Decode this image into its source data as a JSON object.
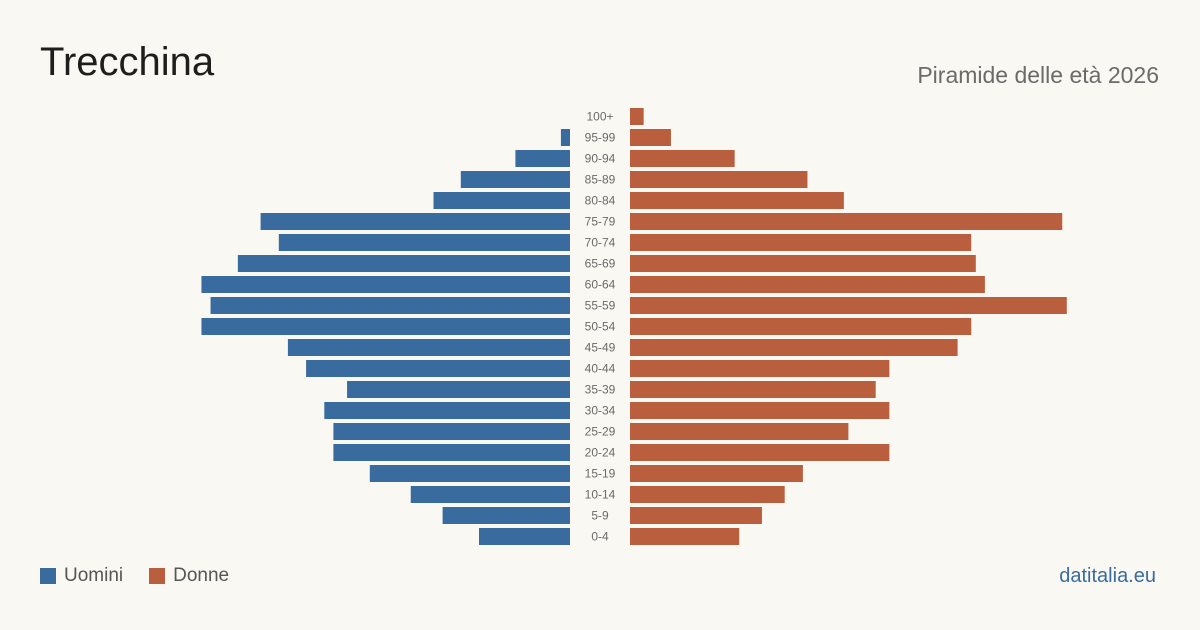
{
  "title": "Trecchina",
  "subtitle": "Piramide delle età 2026",
  "source": "datitalia.eu",
  "colors": {
    "men": "#3a6b9e",
    "women": "#b95f3e",
    "background": "#f9f8f3",
    "source": "#3a6b9e"
  },
  "legend": {
    "men_label": "Uomini",
    "women_label": "Donne"
  },
  "chart_data": {
    "type": "bar",
    "orientation": "horizontal-pyramid",
    "categories": [
      "100+",
      "95-99",
      "90-94",
      "85-89",
      "80-84",
      "75-79",
      "70-74",
      "65-69",
      "60-64",
      "55-59",
      "50-54",
      "45-49",
      "40-44",
      "35-39",
      "30-34",
      "25-29",
      "20-24",
      "15-19",
      "10-14",
      "5-9",
      "0-4"
    ],
    "series": [
      {
        "name": "Uomini",
        "side": "left",
        "values": [
          0,
          2,
          12,
          24,
          30,
          68,
          64,
          73,
          81,
          79,
          81,
          62,
          58,
          49,
          54,
          52,
          52,
          44,
          35,
          28,
          20
        ]
      },
      {
        "name": "Donne",
        "side": "right",
        "values": [
          3,
          9,
          23,
          39,
          47,
          95,
          75,
          76,
          78,
          96,
          75,
          72,
          57,
          54,
          57,
          48,
          57,
          38,
          34,
          29,
          24
        ]
      }
    ],
    "xlim": [
      0,
      100
    ]
  }
}
